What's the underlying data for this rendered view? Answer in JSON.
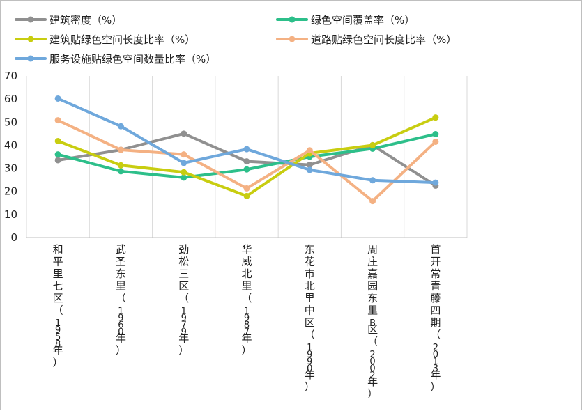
{
  "chart_data": {
    "type": "line",
    "title": "",
    "xlabel": "",
    "ylabel": "",
    "ylim": [
      0,
      70
    ],
    "yticks": [
      0,
      10,
      20,
      30,
      40,
      50,
      60,
      70
    ],
    "grid": "vertical",
    "legend_position": "top",
    "categories": [
      "和平里七区（1958年）",
      "武圣东里（1960年）",
      "劲松三区（1979年）",
      "华威北里（1987年）",
      "东花市北里中区（1990年）",
      "周庄嘉园东里B区（2002年）",
      "首开常青藤四期（2013年）"
    ],
    "series": [
      {
        "name": "建筑密度（%）",
        "color": "#909090",
        "values": [
          33.5,
          38,
          45,
          33,
          31.5,
          40,
          22.5
        ]
      },
      {
        "name": "绿色空间覆盖率（%）",
        "color": "#2dbf8a",
        "values": [
          36,
          28.7,
          26,
          29.5,
          35,
          38.5,
          44.8
        ]
      },
      {
        "name": "建筑贴绿色空间长度比率（%）",
        "color": "#c8cd10",
        "values": [
          41.8,
          31.3,
          28.3,
          18,
          36.5,
          40,
          52
        ]
      },
      {
        "name": "道路贴绿色空间长度比率（%）",
        "color": "#f4b183",
        "values": [
          50.8,
          38,
          36,
          21.3,
          37.8,
          15.8,
          41.5
        ]
      },
      {
        "name": "服务设施贴绿色空间数量比率（%）",
        "color": "#6fa8dc",
        "values": [
          60.2,
          48.2,
          32.3,
          38.3,
          29.3,
          24.8,
          23.8
        ]
      }
    ]
  }
}
